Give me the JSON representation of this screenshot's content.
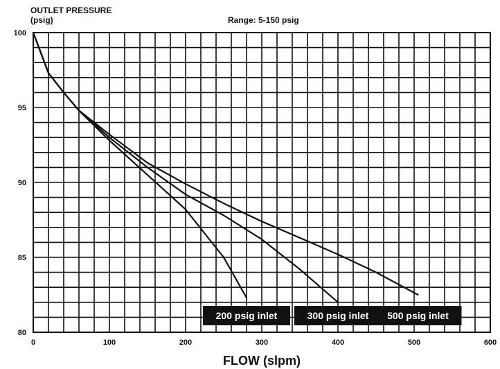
{
  "chart_data": {
    "type": "line",
    "title": "",
    "ylabel_line1": "OUTLET PRESSURE",
    "ylabel_line2": "(psig)",
    "range_note": "Range: 5-150 psig",
    "xlabel": "FLOW (slpm)",
    "xlim": [
      0,
      600
    ],
    "ylim": [
      80,
      100
    ],
    "xticks": [
      0,
      100,
      200,
      300,
      400,
      500,
      600
    ],
    "yticks": [
      80,
      85,
      90,
      95,
      100
    ],
    "x_minor_step": 20,
    "y_minor_step": 1,
    "grid": true,
    "series": [
      {
        "name": "200 psig inlet",
        "points": [
          [
            0,
            100
          ],
          [
            20,
            97.3
          ],
          [
            40,
            96
          ],
          [
            60,
            94.8
          ],
          [
            100,
            92.8
          ],
          [
            150,
            90.5
          ],
          [
            200,
            88.2
          ],
          [
            250,
            85
          ],
          [
            280,
            82.3
          ]
        ]
      },
      {
        "name": "300 psig inlet",
        "points": [
          [
            0,
            100
          ],
          [
            20,
            97.3
          ],
          [
            40,
            96
          ],
          [
            60,
            94.8
          ],
          [
            100,
            93
          ],
          [
            150,
            91
          ],
          [
            200,
            89.2
          ],
          [
            250,
            87.8
          ],
          [
            300,
            86.2
          ],
          [
            350,
            84.2
          ],
          [
            400,
            82
          ]
        ]
      },
      {
        "name": "500 psig inlet",
        "points": [
          [
            0,
            100
          ],
          [
            20,
            97.3
          ],
          [
            40,
            96
          ],
          [
            60,
            94.8
          ],
          [
            100,
            93.2
          ],
          [
            150,
            91.3
          ],
          [
            200,
            89.9
          ],
          [
            250,
            88.6
          ],
          [
            300,
            87.4
          ],
          [
            350,
            86.3
          ],
          [
            400,
            85.2
          ],
          [
            450,
            84
          ],
          [
            505,
            82.5
          ]
        ]
      }
    ]
  }
}
